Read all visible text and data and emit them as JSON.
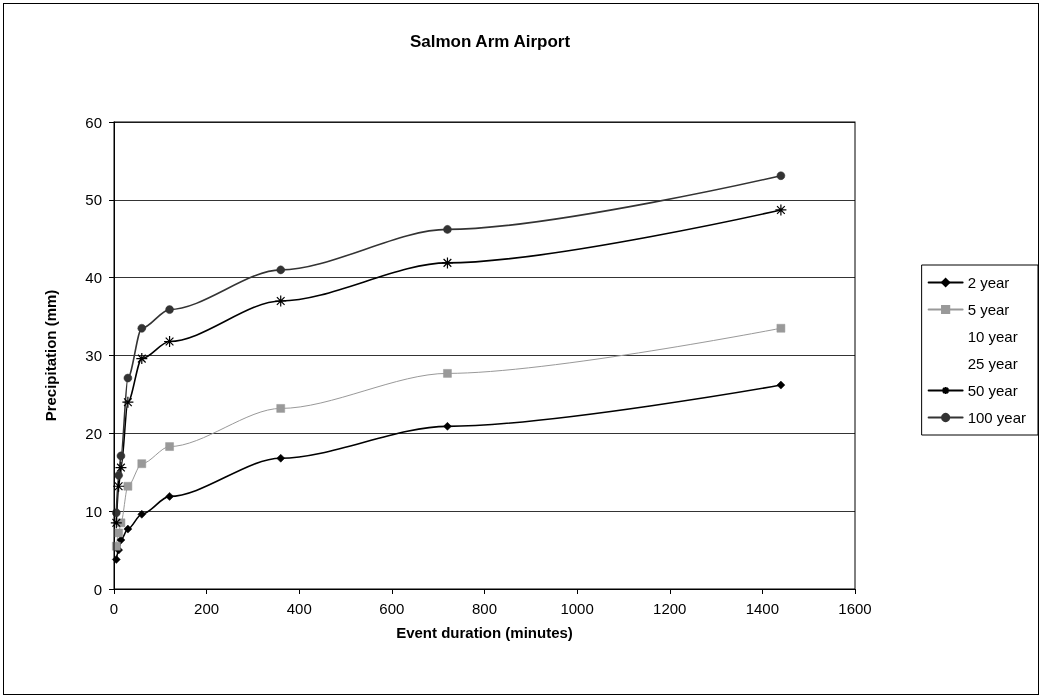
{
  "chart_data": {
    "type": "line",
    "title": "Salmon Arm Airport",
    "xlabel": "Event duration (minutes)",
    "ylabel": "Precipitation (mm)",
    "x": [
      5,
      10,
      15,
      30,
      60,
      120,
      360,
      720,
      1440
    ],
    "series": [
      {
        "name": "2 year",
        "color": "#000000",
        "marker": "diamond",
        "values": [
          3.8,
          5.0,
          6.3,
          7.7,
          9.6,
          11.9,
          16.8,
          20.9,
          26.2
        ]
      },
      {
        "name": "5 year",
        "color": "#999999",
        "marker": "square",
        "values": [
          5.5,
          7.2,
          8.5,
          13.2,
          16.1,
          18.3,
          23.2,
          27.7,
          33.5
        ]
      },
      {
        "name": "10 year",
        "marker": "none",
        "values": [
          null,
          null,
          null,
          null,
          null,
          null,
          null,
          null,
          null
        ]
      },
      {
        "name": "25 year",
        "marker": "none",
        "values": [
          null,
          null,
          null,
          null,
          null,
          null,
          null,
          null,
          null
        ]
      },
      {
        "name": "50 year",
        "color": "#000000",
        "marker": "cross",
        "values": [
          8.5,
          13.2,
          15.6,
          24.0,
          29.6,
          31.8,
          37.0,
          41.9,
          48.7
        ]
      },
      {
        "name": "100 year",
        "color": "#333333",
        "marker": "circle",
        "values": [
          9.8,
          14.6,
          17.1,
          27.1,
          33.5,
          35.9,
          41.0,
          46.2,
          53.1
        ]
      }
    ],
    "xlim": [
      0,
      1600
    ],
    "xticks": [
      0,
      200,
      400,
      600,
      800,
      1000,
      1200,
      1400,
      1600
    ],
    "ylim": [
      0,
      60
    ],
    "yticks": [
      0,
      10,
      20,
      30,
      40,
      50,
      60
    ],
    "grid": "y",
    "legend": "right",
    "line_style": "solid"
  }
}
